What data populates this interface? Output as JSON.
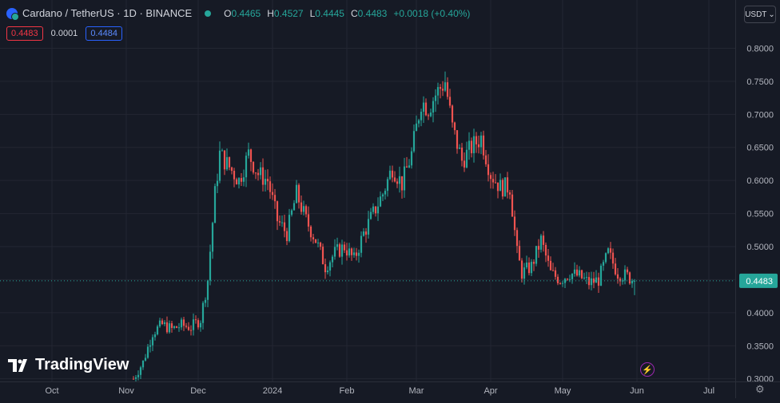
{
  "header": {
    "symbol": "Cardano / TetherUS · 1D · BINANCE",
    "open_label": "O",
    "open": "0.4465",
    "high_label": "H",
    "high": "0.4527",
    "low_label": "L",
    "low": "0.4445",
    "close_label": "C",
    "close": "0.4483",
    "change": "+0.0018 (+0.40%)"
  },
  "trade": {
    "sell": "0.4483",
    "spread": "0.0001",
    "buy": "0.4484"
  },
  "currency_button": "USDT",
  "logo_text": "TradingView",
  "colors": {
    "up": "#26a69a",
    "down": "#ef5350",
    "background": "#161a25",
    "grid": "#232632",
    "axis_text": "#b2b5be"
  },
  "chart_data": {
    "type": "candlestick",
    "price_ticks": [
      "0.8000",
      "0.7500",
      "0.7000",
      "0.6500",
      "0.6000",
      "0.5500",
      "0.5000",
      "0.4500",
      "0.4000",
      "0.3500",
      "0.3000"
    ],
    "time_ticks": [
      "Oct",
      "Nov",
      "Dec",
      "2024",
      "Feb",
      "Mar",
      "Apr",
      "May",
      "Jun",
      "Jul"
    ],
    "ylim": [
      0.296,
      0.873
    ],
    "last_price_label": "0.4483",
    "last_price": 0.4483,
    "series": [
      {
        "date": "2023-11-04",
        "close": 0.3
      },
      {
        "date": "2023-11-08",
        "close": 0.325
      },
      {
        "date": "2023-11-12",
        "close": 0.37
      },
      {
        "date": "2023-11-16",
        "close": 0.382
      },
      {
        "date": "2023-11-20",
        "close": 0.375
      },
      {
        "date": "2023-11-24",
        "close": 0.381
      },
      {
        "date": "2023-11-28",
        "close": 0.378
      },
      {
        "date": "2023-12-02",
        "close": 0.39
      },
      {
        "date": "2023-12-05",
        "close": 0.45
      },
      {
        "date": "2023-12-08",
        "close": 0.58
      },
      {
        "date": "2023-12-10",
        "close": 0.64
      },
      {
        "date": "2023-12-14",
        "close": 0.62
      },
      {
        "date": "2023-12-18",
        "close": 0.6
      },
      {
        "date": "2023-12-22",
        "close": 0.64
      },
      {
        "date": "2023-12-26",
        "close": 0.61
      },
      {
        "date": "2023-12-30",
        "close": 0.6
      },
      {
        "date": "2024-01-03",
        "close": 0.54
      },
      {
        "date": "2024-01-07",
        "close": 0.52
      },
      {
        "date": "2024-01-11",
        "close": 0.58
      },
      {
        "date": "2024-01-15",
        "close": 0.54
      },
      {
        "date": "2024-01-19",
        "close": 0.51
      },
      {
        "date": "2024-01-23",
        "close": 0.47
      },
      {
        "date": "2024-01-27",
        "close": 0.49
      },
      {
        "date": "2024-01-31",
        "close": 0.5
      },
      {
        "date": "2024-02-04",
        "close": 0.48
      },
      {
        "date": "2024-02-08",
        "close": 0.52
      },
      {
        "date": "2024-02-12",
        "close": 0.55
      },
      {
        "date": "2024-02-16",
        "close": 0.58
      },
      {
        "date": "2024-02-20",
        "close": 0.62
      },
      {
        "date": "2024-02-24",
        "close": 0.595
      },
      {
        "date": "2024-02-28",
        "close": 0.64
      },
      {
        "date": "2024-03-03",
        "close": 0.72
      },
      {
        "date": "2024-03-06",
        "close": 0.71
      },
      {
        "date": "2024-03-09",
        "close": 0.73
      },
      {
        "date": "2024-03-13",
        "close": 0.75
      },
      {
        "date": "2024-03-16",
        "close": 0.68
      },
      {
        "date": "2024-03-20",
        "close": 0.63
      },
      {
        "date": "2024-03-24",
        "close": 0.65
      },
      {
        "date": "2024-03-28",
        "close": 0.665
      },
      {
        "date": "2024-04-01",
        "close": 0.61
      },
      {
        "date": "2024-04-05",
        "close": 0.59
      },
      {
        "date": "2024-04-09",
        "close": 0.59
      },
      {
        "date": "2024-04-12",
        "close": 0.49
      },
      {
        "date": "2024-04-14",
        "close": 0.46
      },
      {
        "date": "2024-04-18",
        "close": 0.47
      },
      {
        "date": "2024-04-22",
        "close": 0.51
      },
      {
        "date": "2024-04-26",
        "close": 0.46
      },
      {
        "date": "2024-04-30",
        "close": 0.45
      },
      {
        "date": "2024-05-04",
        "close": 0.46
      },
      {
        "date": "2024-05-08",
        "close": 0.455
      },
      {
        "date": "2024-05-12",
        "close": 0.445
      },
      {
        "date": "2024-05-16",
        "close": 0.45
      },
      {
        "date": "2024-05-20",
        "close": 0.49
      },
      {
        "date": "2024-05-24",
        "close": 0.46
      },
      {
        "date": "2024-05-28",
        "close": 0.455
      },
      {
        "date": "2024-05-31",
        "close": 0.4483
      }
    ]
  }
}
